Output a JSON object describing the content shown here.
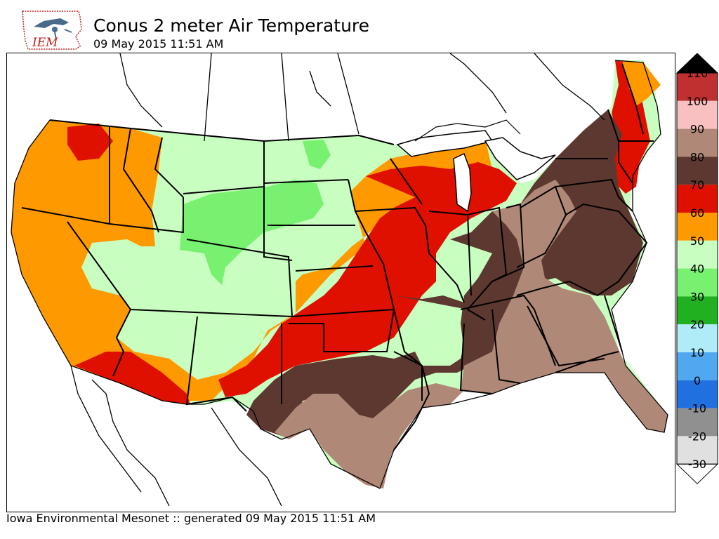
{
  "header": {
    "logo_text": "IEM",
    "title": "Conus 2 meter Air Temperature",
    "subtitle": "09 May 2015 11:51 AM"
  },
  "footer": {
    "credit": "Iowa Environmental Mesonet :: generated 09 May 2015 11:51 AM"
  },
  "colorbar": {
    "labels": [
      "110",
      "100",
      "90",
      "80",
      "70",
      "60",
      "50",
      "40",
      "30",
      "20",
      "10",
      "0",
      "-10",
      "-20",
      "-30"
    ],
    "colors": [
      "#000000",
      "#c03030",
      "#f8c0c0",
      "#b08878",
      "#5c3830",
      "#e01000",
      "#ff9900",
      "#c8ffc0",
      "#78f070",
      "#20b020",
      "#b0ecf8",
      "#50a8f0",
      "#2070e0",
      "#909090",
      "#e0e0e0",
      "#ffffff"
    ]
  },
  "map": {
    "colors": {
      "orange_50": "#ff9900",
      "lightgreen_40": "#c8ffc0",
      "green_30": "#78f070",
      "red_60": "#e01000",
      "brown_70": "#5c3830",
      "tan_80": "#b08878",
      "ocean": "#ffffff"
    }
  }
}
